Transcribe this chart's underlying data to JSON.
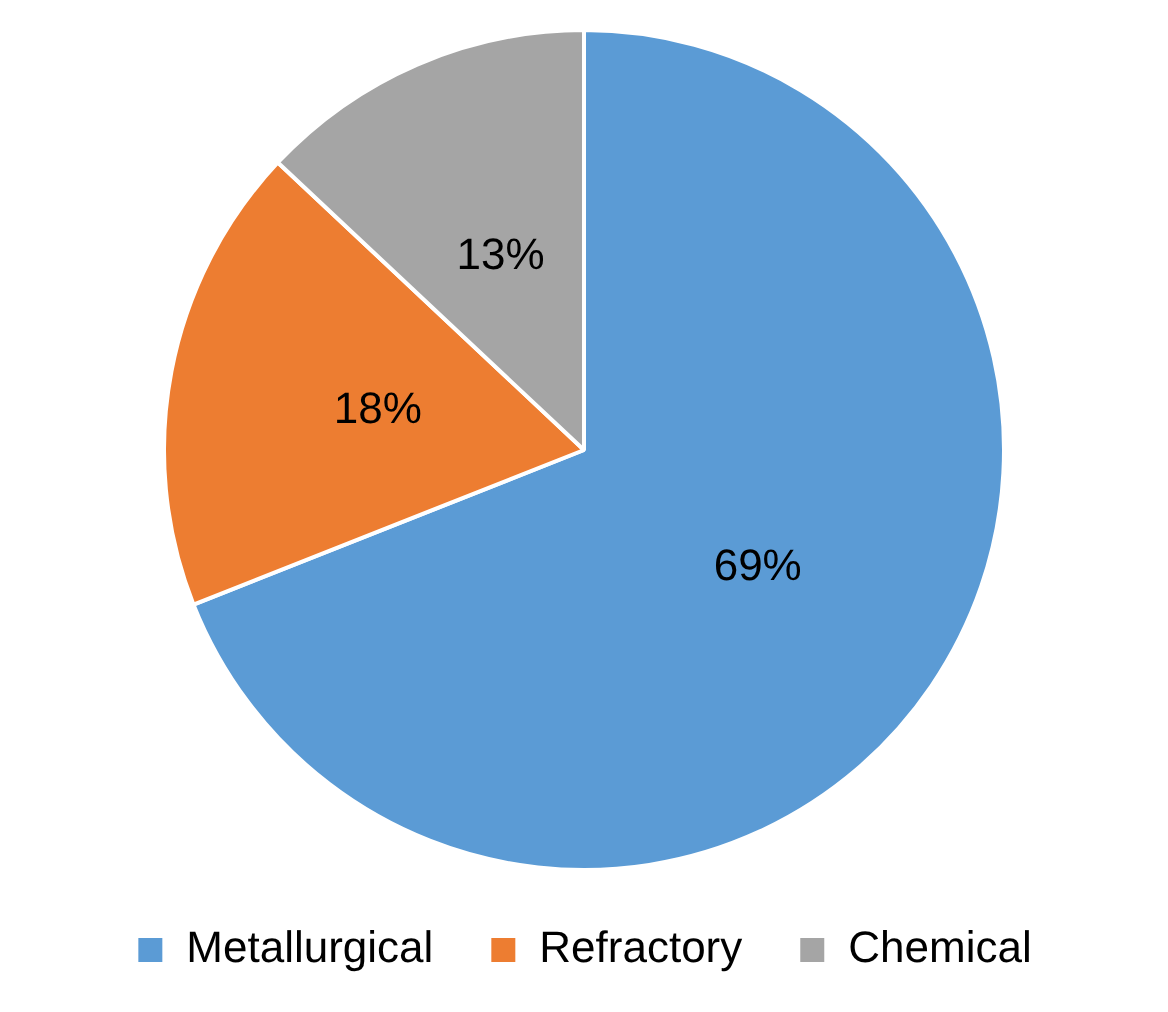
{
  "chart_data": {
    "type": "pie",
    "categories": [
      "Metallurgical",
      "Refractory",
      "Chemical"
    ],
    "values": [
      69,
      18,
      13
    ],
    "colors": [
      "#5b9bd5",
      "#ed7d31",
      "#a5a5a5"
    ],
    "value_labels": [
      "69%",
      "18%",
      "13%"
    ],
    "legend": "bottom"
  }
}
